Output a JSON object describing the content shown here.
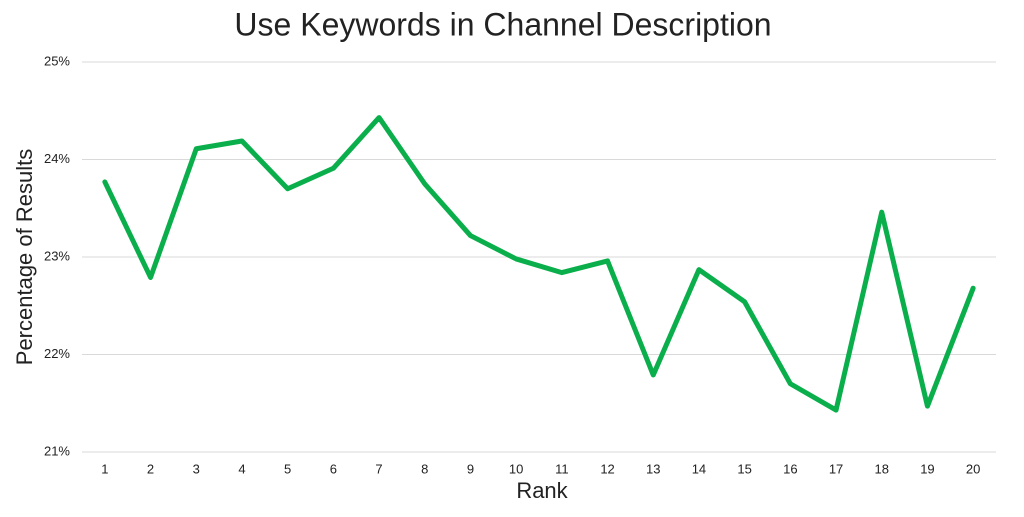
{
  "chart_data": {
    "type": "line",
    "title": "Use Keywords in Channel Description",
    "x_label": "Rank",
    "y_label": "Percentage of Results",
    "categories": [
      "1",
      "2",
      "3",
      "4",
      "5",
      "6",
      "7",
      "8",
      "9",
      "10",
      "11",
      "12",
      "13",
      "14",
      "15",
      "16",
      "17",
      "18",
      "19",
      "20"
    ],
    "series": [
      {
        "name": "Percentage of Results",
        "color": "#0aaf4c",
        "values": [
          23.77,
          22.79,
          24.11,
          24.19,
          23.7,
          23.91,
          24.43,
          23.75,
          23.22,
          22.98,
          22.84,
          22.96,
          21.79,
          22.87,
          22.54,
          21.7,
          21.43,
          23.46,
          21.47,
          22.68
        ]
      }
    ],
    "ylim": [
      21,
      25
    ],
    "yticks": [
      {
        "value": 21,
        "label": "21%"
      },
      {
        "value": 22,
        "label": "22%"
      },
      {
        "value": 23,
        "label": "23%"
      },
      {
        "value": 24,
        "label": "24%"
      },
      {
        "value": 25,
        "label": "25%"
      }
    ],
    "grid": true
  }
}
